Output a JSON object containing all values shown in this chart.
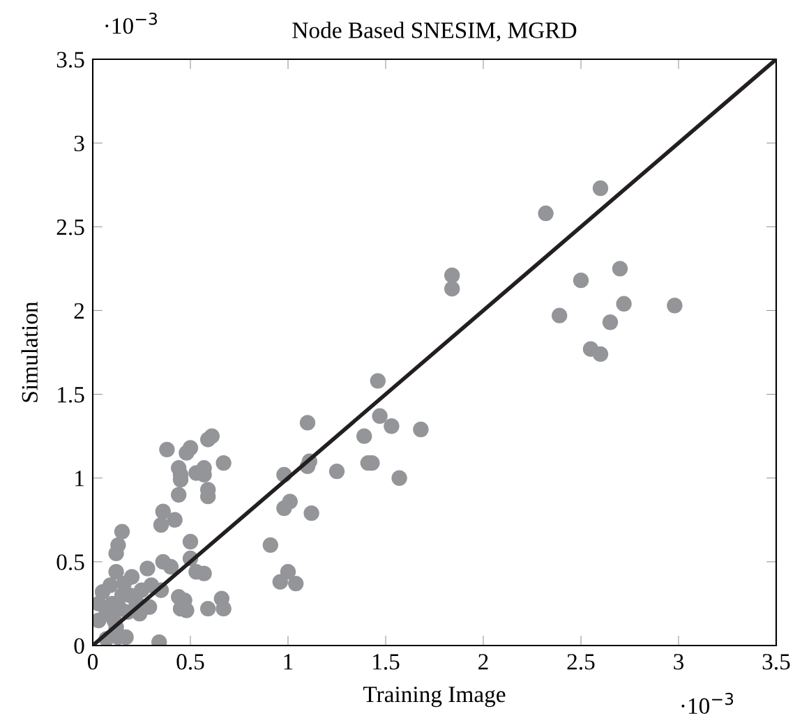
{
  "chart_data": {
    "type": "scatter",
    "title": "Node Based SNESIM, MGRD",
    "xlabel": "Training Image",
    "ylabel": "Simulation",
    "annotations": [
      "·10$^{−3}$",
      "·10$^{−3}$"
    ],
    "xlim": [
      0,
      3.5
    ],
    "ylim": [
      0,
      3.5
    ],
    "xticks": [
      0,
      0.5,
      1,
      1.5,
      2,
      2.5,
      3,
      3.5
    ],
    "yticks": [
      0,
      0.5,
      1,
      1.5,
      2,
      2.5,
      3,
      3.5
    ],
    "grid": false,
    "marker": "circle",
    "series": [
      {
        "color": "#939598",
        "x": [
          2.6,
          2.32,
          2.7,
          1.84,
          1.84,
          2.5,
          2.39,
          2.72,
          2.65,
          2.55,
          2.6,
          2.98,
          1.46,
          1.1,
          1.47,
          1.53,
          1.68,
          1.39,
          1.41,
          1.43,
          1.25,
          1.57,
          1.11,
          1.1,
          0.98,
          1.01,
          0.98,
          1.12,
          0.91,
          1.0,
          0.96,
          1.04,
          0.38,
          0.48,
          0.5,
          0.59,
          0.61,
          0.44,
          0.45,
          0.45,
          0.53,
          0.57,
          0.57,
          0.67,
          0.59,
          0.59,
          0.44,
          0.36,
          0.35,
          0.42,
          0.15,
          0.13,
          0.12,
          0.5,
          0.5,
          0.36,
          0.4,
          0.53,
          0.57,
          0.44,
          0.47,
          0.45,
          0.48,
          0.66,
          0.59,
          0.67,
          0.34,
          0.17,
          0.28,
          0.35,
          0.2,
          0.12,
          0.24,
          0.29,
          0.3,
          0.25,
          0.19,
          0.16,
          0.09,
          0.05,
          0.03,
          0.1,
          0.14,
          0.07,
          0.03,
          0.11,
          0.12,
          0.07,
          0.13,
          0.15,
          0.22,
          0.18
        ],
        "values": [
          2.73,
          2.58,
          2.25,
          2.21,
          2.13,
          2.18,
          1.97,
          2.04,
          1.93,
          1.77,
          1.74,
          2.03,
          1.58,
          1.33,
          1.37,
          1.31,
          1.29,
          1.25,
          1.09,
          1.09,
          1.04,
          1.0,
          1.1,
          1.07,
          1.02,
          0.86,
          0.82,
          0.79,
          0.6,
          0.44,
          0.38,
          0.37,
          1.17,
          1.15,
          1.18,
          1.23,
          1.25,
          1.06,
          1.02,
          0.99,
          1.03,
          1.06,
          1.02,
          1.09,
          0.93,
          0.89,
          0.9,
          0.8,
          0.72,
          0.75,
          0.68,
          0.6,
          0.55,
          0.62,
          0.52,
          0.5,
          0.47,
          0.44,
          0.43,
          0.29,
          0.27,
          0.22,
          0.21,
          0.28,
          0.22,
          0.22,
          0.02,
          0.05,
          0.46,
          0.33,
          0.41,
          0.44,
          0.19,
          0.23,
          0.36,
          0.33,
          0.3,
          0.37,
          0.36,
          0.32,
          0.25,
          0.25,
          0.22,
          0.19,
          0.15,
          0.15,
          0.11,
          0.04,
          0.05,
          0.3,
          0.27,
          0.2
        ]
      },
      {
        "type": "line",
        "color": "#231f20",
        "x": [
          0,
          3.5
        ],
        "values": [
          0,
          3.5
        ],
        "marker": "none",
        "line_style": "solid"
      }
    ]
  }
}
